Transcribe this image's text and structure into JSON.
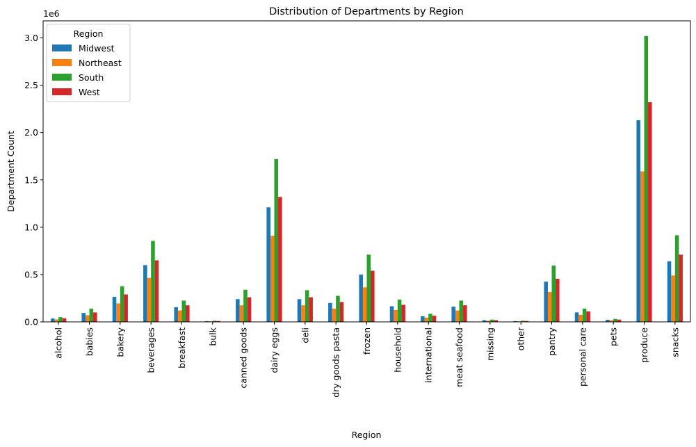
{
  "chart_data": {
    "type": "bar",
    "title": "Distribution of Departments by Region",
    "xlabel": "Region",
    "ylabel": "Department Count",
    "y_multiplier_label": "1e6",
    "ylim": [
      0,
      3.18
    ],
    "y_ticks": [
      0.0,
      0.5,
      1.0,
      1.5,
      2.0,
      2.5,
      3.0
    ],
    "y_tick_labels": [
      "0.0",
      "0.5",
      "1.0",
      "1.5",
      "2.0",
      "2.5",
      "3.0"
    ],
    "grid": false,
    "legend_position": "top-left",
    "legend_title": "Region",
    "categories": [
      "alcohol",
      "babies",
      "bakery",
      "beverages",
      "breakfast",
      "bulk",
      "canned goods",
      "dairy eggs",
      "deli",
      "dry goods pasta",
      "frozen",
      "household",
      "international",
      "meat seafood",
      "missing",
      "other",
      "pantry",
      "personal care",
      "pets",
      "produce",
      "snacks"
    ],
    "series": [
      {
        "name": "Midwest",
        "color": "#1f77b4",
        "values": [
          0.035,
          0.095,
          0.265,
          0.6,
          0.155,
          0.008,
          0.24,
          1.21,
          0.24,
          0.2,
          0.5,
          0.165,
          0.06,
          0.16,
          0.018,
          0.008,
          0.425,
          0.1,
          0.022,
          2.13,
          0.64
        ]
      },
      {
        "name": "Northeast",
        "color": "#ff7f0e",
        "values": [
          0.026,
          0.07,
          0.195,
          0.465,
          0.12,
          0.006,
          0.175,
          0.91,
          0.175,
          0.14,
          0.365,
          0.125,
          0.045,
          0.12,
          0.012,
          0.006,
          0.315,
          0.075,
          0.017,
          1.59,
          0.49
        ]
      },
      {
        "name": "South",
        "color": "#2ca02c",
        "values": [
          0.05,
          0.14,
          0.375,
          0.855,
          0.225,
          0.012,
          0.34,
          1.72,
          0.335,
          0.275,
          0.71,
          0.235,
          0.085,
          0.225,
          0.024,
          0.012,
          0.595,
          0.14,
          0.031,
          3.02,
          0.915
        ]
      },
      {
        "name": "West",
        "color": "#d62728",
        "values": [
          0.038,
          0.1,
          0.29,
          0.65,
          0.175,
          0.009,
          0.26,
          1.32,
          0.26,
          0.21,
          0.54,
          0.18,
          0.065,
          0.175,
          0.018,
          0.009,
          0.455,
          0.11,
          0.024,
          2.32,
          0.71
        ]
      }
    ]
  }
}
